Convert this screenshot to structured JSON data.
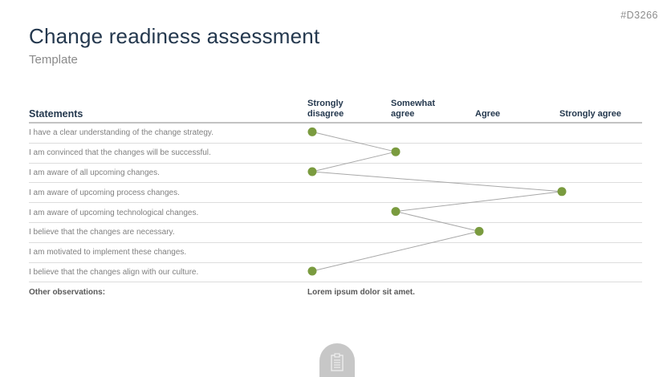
{
  "page": {
    "id_tag": "#D3266",
    "title": "Change readiness assessment",
    "subtitle": "Template"
  },
  "table": {
    "statements_header": "Statements",
    "columns": [
      "Strongly disagree",
      "Somewhat agree",
      "Agree",
      "Strongly agree"
    ],
    "rows": [
      {
        "label": "I have a clear understanding of the change strategy.",
        "rating_index": 0
      },
      {
        "label": "I am convinced that the changes will be successful.",
        "rating_index": 1
      },
      {
        "label": "I am aware of all upcoming changes.",
        "rating_index": 0
      },
      {
        "label": "I am aware of upcoming process changes.",
        "rating_index": 3
      },
      {
        "label": "I am aware of upcoming technological changes.",
        "rating_index": 1
      },
      {
        "label": "I believe that the changes are necessary.",
        "rating_index": 2
      },
      {
        "label": "I am motivated to implement these changes.",
        "rating_index": null
      },
      {
        "label": "I believe that the changes align with our culture.",
        "rating_index": 0
      }
    ],
    "footer": {
      "label": "Other observations:",
      "note": "Lorem ipsum dolor sit amet."
    }
  },
  "chart_data": {
    "type": "line",
    "title": "Change readiness assessment",
    "description": "Survey profile line: each statement row has one marker at its selected rating column; consecutive markers are connected by a line.",
    "x_categories": [
      "Strongly disagree",
      "Somewhat agree",
      "Agree",
      "Strongly agree"
    ],
    "row_statements": [
      "I have a clear understanding of the change strategy.",
      "I am convinced that the changes will be successful.",
      "I am aware of all upcoming changes.",
      "I am aware of upcoming process changes.",
      "I am aware of upcoming technological changes.",
      "I believe that the changes are necessary.",
      "I am motivated to implement these changes.",
      "I believe that the changes align with our culture."
    ],
    "ratings": [
      "Strongly disagree",
      "Somewhat agree",
      "Strongly disagree",
      "Strongly agree",
      "Somewhat agree",
      "Agree",
      null,
      "Strongly disagree"
    ],
    "rating_indices": [
      0,
      1,
      0,
      3,
      1,
      2,
      null,
      0
    ],
    "legend": "none",
    "grid": "horizontal row separators only"
  },
  "colors": {
    "accent_green": "#7a9b3f",
    "connector_gray": "#a8a8a8",
    "navy": "#24384e",
    "tab_gray": "#c7c7c7"
  },
  "icons": {
    "clipboard": "clipboard-icon"
  }
}
